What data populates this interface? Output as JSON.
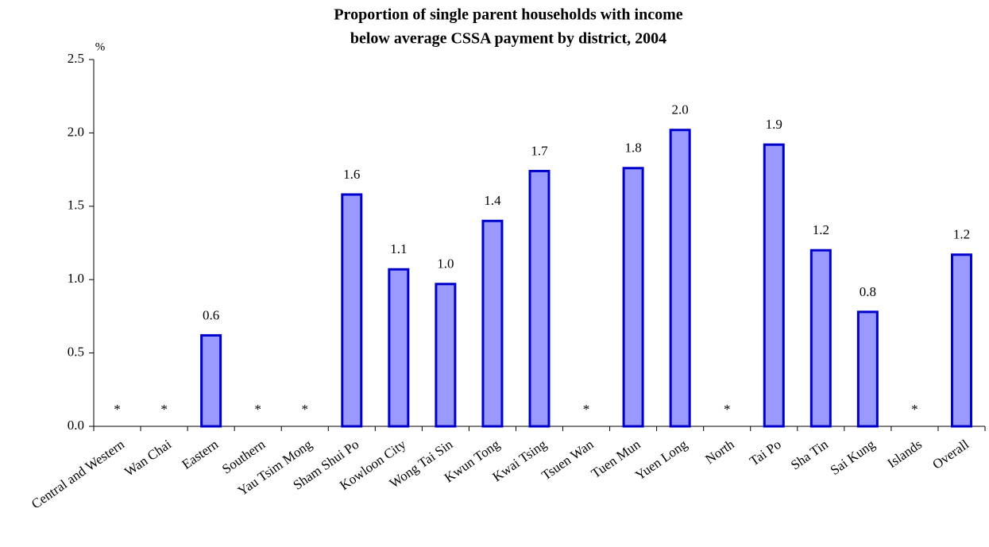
{
  "chart_data": {
    "type": "bar",
    "title": [
      "Proportion of single parent households with income",
      "below average CSSA payment by district, 2004"
    ],
    "y_label": "%",
    "categories": [
      "Central and Western",
      "Wan Chai",
      "Eastern",
      "Southern",
      "Yau Tsim Mong",
      "Sham Shui Po",
      "Kowloon City",
      "Wong Tai Sin",
      "Kwun Tong",
      "Kwai Tsing",
      "Tsuen Wan",
      "Tuen Mun",
      "Yuen Long",
      "North",
      "Tai Po",
      "Sha Tin",
      "Sai Kung",
      "Islands",
      "Overall"
    ],
    "values": [
      null,
      null,
      0.62,
      null,
      null,
      1.58,
      1.07,
      0.97,
      1.4,
      1.74,
      null,
      1.76,
      2.02,
      null,
      1.92,
      1.2,
      0.78,
      null,
      1.17
    ],
    "value_labels": [
      "*",
      "*",
      "0.6",
      "*",
      "*",
      "1.6",
      "1.1",
      "1.0",
      "1.4",
      "1.7",
      "*",
      "1.8",
      "2.0",
      "*",
      "1.9",
      "1.2",
      "0.8",
      "*",
      "1.2"
    ],
    "color": "#9999ff",
    "edge_color": "#0000cc",
    "ylim": [
      0,
      2.5
    ],
    "yticks": [
      {
        "value": 0,
        "label": "0.0"
      },
      {
        "value": 0.5,
        "label": "0.5"
      },
      {
        "value": 1,
        "label": "1.0"
      },
      {
        "value": 1.5,
        "label": "1.5"
      },
      {
        "value": 2,
        "label": "2.0"
      },
      {
        "value": 2.5,
        "label": "2.5"
      }
    ],
    "grid": false
  }
}
